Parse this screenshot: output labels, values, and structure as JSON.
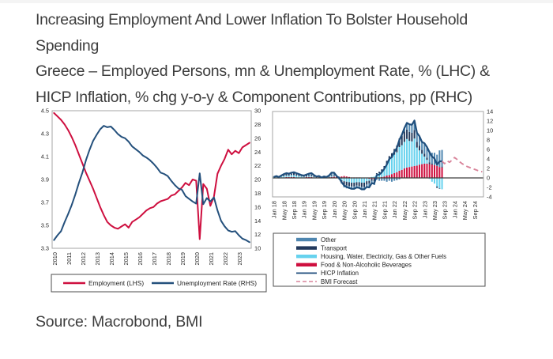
{
  "header": {
    "title_line1": "Increasing Employment And Lower Inflation To Bolster Household",
    "title_line2": "Spending",
    "subtitle_line1": "Greece – Employed Persons, mn & Unemployment Rate, % (LHC) &",
    "subtitle_line2": "HICP Inflation, % chg y-o-y & Component Contributions, pp (RHC)"
  },
  "source_text": "Source: Macrobond, BMI",
  "colors": {
    "employment_red": "#ce0f3f",
    "unemployment_navy": "#24507c",
    "hicp_navy": "#1f4e7c",
    "transport_dark": "#22395c",
    "other_blue": "#4e86b0",
    "housing_cyan": "#66d2ee",
    "food_red": "#ce0f3f",
    "forecast_pink": "#d9849a",
    "plot_border": "#a6a6a6",
    "legend_border": "#4d4d4d",
    "text": "#3d3d3d"
  },
  "chart_data": [
    {
      "type": "line",
      "title": "Greece - Employed Persons, mn & Unemployment Rate, % (LHC)",
      "x_unit": "quarterly, 2010Q1 - 2023Q4",
      "x_tick_labels": [
        "2010",
        "2011",
        "2012",
        "2013",
        "2014",
        "2015",
        "2016",
        "2017",
        "2018",
        "2019",
        "2020",
        "2021",
        "2022",
        "2023"
      ],
      "left_axis": {
        "min": 3.3,
        "max": 4.5,
        "ticks": [
          4.5,
          4.3,
          4.1,
          3.9,
          3.7,
          3.5,
          3.3
        ]
      },
      "right_axis": {
        "min": 10,
        "max": 30,
        "ticks": [
          30,
          28,
          26,
          24,
          22,
          20,
          18,
          16,
          14,
          12,
          10
        ]
      },
      "grid": false,
      "legend_position": "bottom-box",
      "series": [
        {
          "name": "Employment (LHS)",
          "axis": "left",
          "color": "#ce0f3f",
          "values": [
            4.48,
            4.45,
            4.42,
            4.38,
            4.33,
            4.27,
            4.2,
            4.12,
            4.04,
            3.96,
            3.89,
            3.82,
            3.74,
            3.66,
            3.59,
            3.53,
            3.5,
            3.48,
            3.47,
            3.49,
            3.51,
            3.48,
            3.53,
            3.55,
            3.57,
            3.6,
            3.63,
            3.65,
            3.66,
            3.69,
            3.71,
            3.72,
            3.73,
            3.76,
            3.77,
            3.8,
            3.83,
            3.87,
            3.85,
            3.9,
            3.89,
            3.38,
            3.86,
            3.82,
            3.67,
            3.75,
            3.95,
            4.02,
            4.08,
            4.16,
            4.12,
            4.15,
            4.13,
            4.18,
            4.2,
            4.22
          ]
        },
        {
          "name": "Unemployment Rate (RHS)",
          "axis": "right",
          "color": "#24507c",
          "values": [
            11.2,
            11.9,
            12.5,
            13.8,
            15.0,
            16.3,
            17.8,
            19.5,
            21.0,
            22.8,
            24.3,
            25.6,
            26.5,
            27.3,
            27.8,
            27.6,
            27.7,
            27.2,
            26.6,
            26.2,
            26.0,
            25.5,
            24.8,
            24.4,
            24.0,
            23.5,
            23.2,
            22.8,
            22.3,
            21.7,
            21.0,
            20.8,
            20.5,
            19.8,
            19.2,
            18.7,
            18.5,
            17.6,
            17.2,
            16.8,
            16.5,
            20.9,
            16.4,
            17.3,
            16.8,
            17.4,
            15.5,
            14.0,
            13.2,
            12.6,
            12.4,
            12.5,
            11.9,
            11.4,
            11.2,
            10.9
          ]
        }
      ]
    },
    {
      "type": "bar",
      "title": "Greece - HICP Inflation, % chg y-o-y & Component Contributions, pp (RHC)",
      "x_unit": "monthly, Jan 2018 - Dec 2024 (bars/actual to Aug 2023, forecast after)",
      "x_tick_labels": [
        "Jan 18",
        "May 18",
        "Sep 18",
        "Jan 19",
        "May 19",
        "Sep 19",
        "Jan 20",
        "May 20",
        "Sep 20",
        "Jan 21",
        "May 21",
        "Sep 21",
        "Jan 22",
        "May 22",
        "Sep 22",
        "Jan 23",
        "May 23",
        "Sep 23",
        "Jan 24",
        "May 24",
        "Sep 24"
      ],
      "x_tick_step_months": 4,
      "months_total": 84,
      "right_axis": {
        "min": -4,
        "max": 14,
        "ticks": [
          14,
          12,
          10,
          8,
          6,
          4,
          2,
          0,
          -2,
          -4
        ]
      },
      "grid": false,
      "legend_position": "bottom-box",
      "bar_series": [
        {
          "name": "Food & Non-Alcoholic Beverages",
          "color": "#ce0f3f",
          "values": [
            0.1,
            0.1,
            0.1,
            0.1,
            0.1,
            0.2,
            0.2,
            0.2,
            0.2,
            0.1,
            0.1,
            0.1,
            0.1,
            0.2,
            0.2,
            0.2,
            0.1,
            0.1,
            0.1,
            0,
            0.1,
            0.1,
            0.1,
            0.2,
            0.3,
            0.2,
            0.2,
            0.3,
            0.4,
            0.3,
            0.2,
            0.1,
            0.1,
            0.1,
            0.1,
            0,
            -0.1,
            -0.1,
            -0.2,
            -0.2,
            -0.2,
            0,
            0.1,
            0.2,
            0.3,
            0.5,
            0.6,
            0.8,
            1.0,
            1.2,
            1.5,
            1.7,
            2.0,
            2.2,
            2.3,
            2.4,
            2.5,
            2.6,
            2.8,
            2.9,
            3.0,
            3.0,
            2.9,
            2.8,
            2.7,
            2.5,
            2.3,
            2.2
          ]
        },
        {
          "name": "Housing, Water, Electricity, Gas & Other Fuels",
          "color": "#66d2ee",
          "values": [
            0.1,
            0.1,
            0.1,
            0.2,
            0.3,
            0.3,
            0.3,
            0.4,
            0.4,
            0.4,
            0.3,
            0.2,
            0.1,
            0.1,
            0.2,
            0.2,
            0.1,
            0,
            0,
            -0.1,
            -0.1,
            -0.1,
            0,
            0.2,
            0.2,
            0,
            -0.2,
            -0.5,
            -0.7,
            -0.8,
            -0.9,
            -1.0,
            -1.0,
            -0.9,
            -0.9,
            -1.0,
            -0.9,
            -0.6,
            -0.4,
            0.2,
            0.3,
            0.8,
            0.9,
            1.2,
            1.7,
            2.4,
            3.1,
            3.4,
            3.9,
            4.2,
            5.0,
            5.2,
            5.6,
            6.0,
            5.5,
            5.3,
            5.8,
            3.8,
            3.0,
            2.2,
            1.5,
            0.8,
            -0.2,
            -0.8,
            -1.2,
            -1.8,
            -2.2,
            -2.4
          ]
        },
        {
          "name": "Transport",
          "color": "#22395c",
          "values": [
            0.1,
            0.1,
            0.1,
            0.2,
            0.3,
            0.3,
            0.3,
            0.3,
            0.4,
            0.3,
            0.2,
            0.1,
            0.1,
            0.2,
            0.2,
            0.3,
            0.2,
            0.1,
            0.1,
            0,
            0.1,
            0,
            0.1,
            0.2,
            0.2,
            0.1,
            -0.1,
            -0.5,
            -0.8,
            -0.8,
            -0.8,
            -0.8,
            -0.8,
            -0.7,
            -0.8,
            -0.9,
            -0.9,
            -0.7,
            -0.6,
            -0.4,
            -0.5,
            0.2,
            0.3,
            0.4,
            0.5,
            0.7,
            0.9,
            1.0,
            1.2,
            1.4,
            1.8,
            2.0,
            2.2,
            2.0,
            1.9,
            1.8,
            1.8,
            1.2,
            1.0,
            0.8,
            0.6,
            0.5,
            0.4,
            0.2,
            0,
            -0.3,
            -0.1,
            0.2
          ]
        },
        {
          "name": "Other",
          "color": "#4e86b0",
          "values": [
            -0.1,
            0.1,
            -0.1,
            0,
            0.1,
            0.2,
            0.1,
            0.2,
            0.2,
            0.2,
            0.2,
            0.2,
            0.2,
            0.2,
            0.3,
            0.3,
            0.2,
            0.1,
            0.2,
            0.2,
            0.2,
            0.2,
            0.3,
            0.5,
            0.4,
            0.1,
            0.1,
            -0.2,
            -0.5,
            -0.6,
            -0.6,
            -0.6,
            -0.6,
            -0.5,
            -0.5,
            -0.5,
            -0.5,
            -0.5,
            -0.8,
            -0.7,
            -0.8,
            -0.4,
            -0.6,
            -0.6,
            -0.6,
            -0.8,
            -0.6,
            -0.8,
            -0.6,
            -0.5,
            -0.3,
            0.2,
            0.7,
            1.4,
            1.6,
            1.7,
            2.0,
            1.9,
            2.0,
            1.7,
            2.2,
            2.2,
            2.3,
            2.3,
            2.6,
            2.4,
            3.5,
            3.5
          ]
        }
      ],
      "line_series": [
        {
          "name": "HICP Inflation",
          "color": "#1f4e7c",
          "dashed": false,
          "start_index": 0,
          "values": [
            0.2,
            0.4,
            0.2,
            0.5,
            0.8,
            1.0,
            0.9,
            1.1,
            1.2,
            1.0,
            0.8,
            0.6,
            0.5,
            0.7,
            0.9,
            1.0,
            0.6,
            0.3,
            0.4,
            0.1,
            0.3,
            0.2,
            0.5,
            1.1,
            1.1,
            0.4,
            0,
            -0.9,
            -1.6,
            -1.9,
            -2.1,
            -2.3,
            -2.3,
            -2.0,
            -2.1,
            -2.4,
            -2.4,
            -1.9,
            -2.0,
            -1.1,
            -1.2,
            0.6,
            0.7,
            1.2,
            1.9,
            2.8,
            4.0,
            4.4,
            5.5,
            6.3,
            8.0,
            9.1,
            10.5,
            11.6,
            11.3,
            11.2,
            12.1,
            9.5,
            8.8,
            7.6,
            7.3,
            6.5,
            5.4,
            4.5,
            4.1,
            2.8,
            3.5,
            3.5
          ]
        },
        {
          "name": "BMI Forecast",
          "color": "#d9849a",
          "dashed": true,
          "start_index": 67,
          "values": [
            3.5,
            3.0,
            3.6,
            3.3,
            3.8,
            4.3,
            3.9,
            3.4,
            3.0,
            2.7,
            2.4,
            2.2,
            2.0,
            1.8,
            1.6,
            1.4,
            1.3
          ]
        }
      ],
      "legend": [
        {
          "label": "Other",
          "swatch": "bar",
          "color": "#4e86b0"
        },
        {
          "label": "Transport",
          "swatch": "bar",
          "color": "#22395c"
        },
        {
          "label": "Housing, Water, Electricity, Gas & Other Fuels",
          "swatch": "bar",
          "color": "#66d2ee"
        },
        {
          "label": "Food & Non-Alcoholic Beverages",
          "swatch": "bar",
          "color": "#ce0f3f"
        },
        {
          "label": "HICP Inflation",
          "swatch": "line",
          "color": "#1f4e7c"
        },
        {
          "label": "BMI Forecast",
          "swatch": "dash",
          "color": "#d9849a"
        }
      ]
    }
  ]
}
